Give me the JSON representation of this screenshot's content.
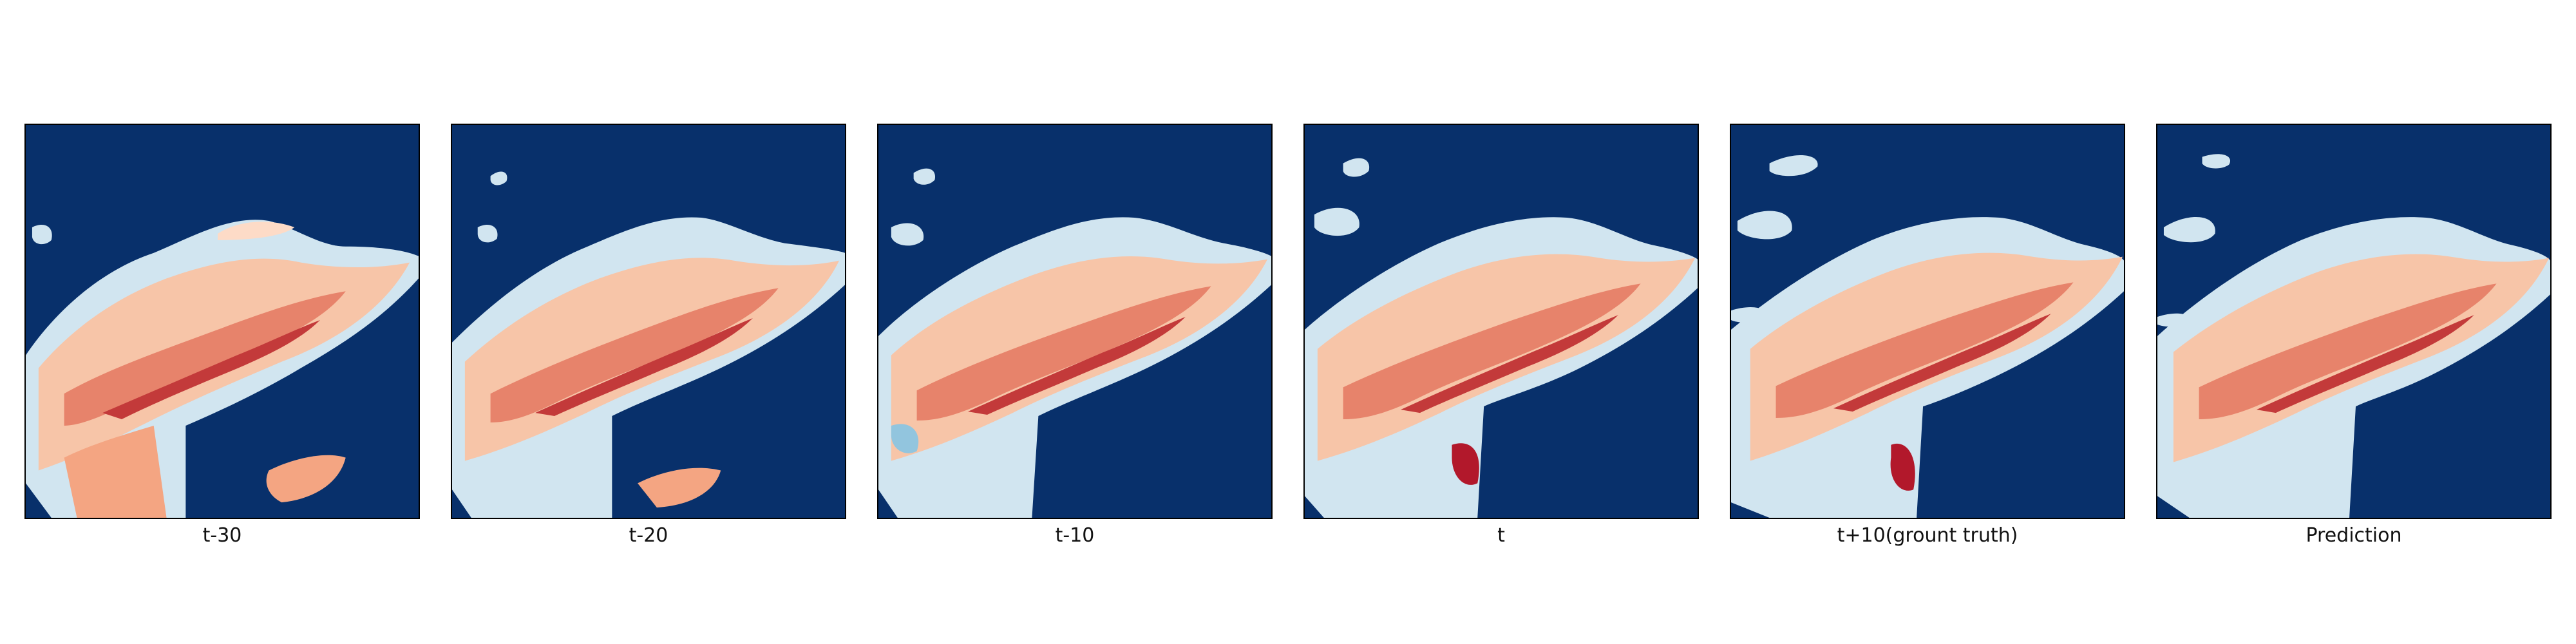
{
  "figure": {
    "colormap": "RdBu_r",
    "background_color": "#08306b",
    "panels": [
      {
        "label": "t-30"
      },
      {
        "label": "t-20"
      },
      {
        "label": "t-10"
      },
      {
        "label": "t"
      },
      {
        "label": "t+10(grount truth)"
      },
      {
        "label": "Prediction"
      }
    ]
  }
}
